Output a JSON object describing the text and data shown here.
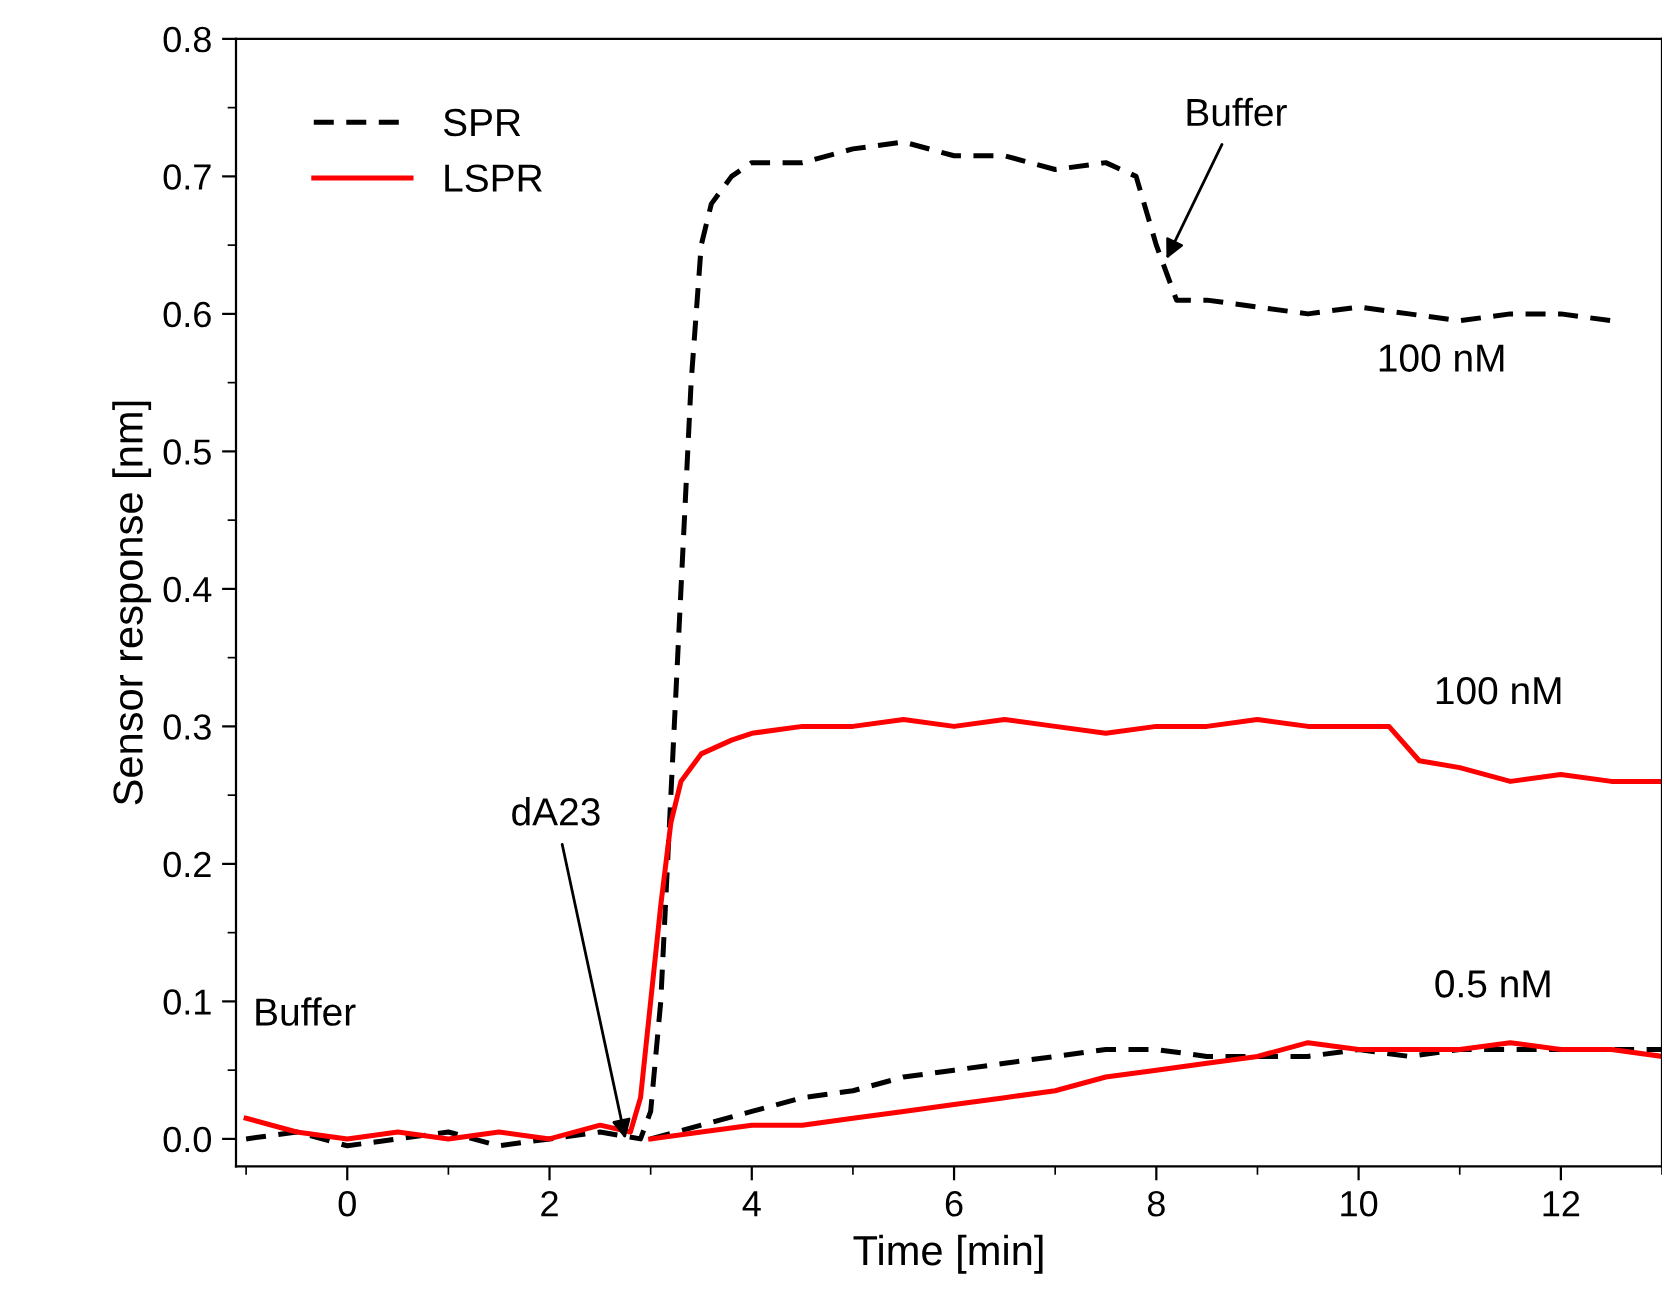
{
  "chart_data": {
    "type": "line",
    "xlabel": "Time [min]",
    "ylabel": "Sensor response [nm]",
    "xlim": [
      -1.1,
      13
    ],
    "xticks": [
      0,
      2,
      4,
      6,
      8,
      10,
      12
    ],
    "ylim": [
      -0.02,
      0.8
    ],
    "yticks": [
      {
        "value": 0,
        "label": "0.0"
      },
      0.1,
      0.2,
      0.3,
      0.4,
      0.5,
      0.6,
      0.7,
      0.8
    ],
    "grid": false,
    "legend": "top left",
    "series": [
      {
        "name": "SPR",
        "color": "#000000",
        "line_style": "dashed",
        "x": [
          -1,
          -0.5,
          0,
          0.5,
          1,
          1.5,
          2,
          2.5,
          2.9,
          3.0,
          3.1,
          3.2,
          3.3,
          3.4,
          3.5,
          3.6,
          3.8,
          4.0,
          4.5,
          5.0,
          5.5,
          6.0,
          6.5,
          7.0,
          7.5,
          7.8,
          8.0,
          8.2,
          8.5,
          9.0,
          9.5,
          10.0,
          10.5,
          11.0,
          11.5,
          12.0,
          12.5
        ],
        "values": [
          0.0,
          0.005,
          -0.005,
          0.0,
          0.005,
          -0.005,
          0.0,
          0.005,
          0.0,
          0.02,
          0.1,
          0.25,
          0.4,
          0.55,
          0.65,
          0.68,
          0.7,
          0.71,
          0.71,
          0.72,
          0.725,
          0.715,
          0.715,
          0.705,
          0.71,
          0.7,
          0.65,
          0.61,
          0.61,
          0.605,
          0.6,
          0.605,
          0.6,
          0.595,
          0.6,
          0.6,
          0.595
        ]
      },
      {
        "name": "LSPR",
        "color": "#ff0000",
        "line_style": "solid",
        "x": [
          -1,
          -0.5,
          0,
          0.5,
          1,
          1.5,
          2,
          2.5,
          2.8,
          2.9,
          3.0,
          3.1,
          3.2,
          3.3,
          3.5,
          3.8,
          4.0,
          4.5,
          5.0,
          5.5,
          6.0,
          6.5,
          7.0,
          7.5,
          8.0,
          8.5,
          9.0,
          9.5,
          10.0,
          10.3,
          10.6,
          11.0,
          11.5,
          12.0,
          12.5,
          13.0
        ],
        "values": [
          0.015,
          0.005,
          0.0,
          0.005,
          0.0,
          0.005,
          0.0,
          0.01,
          0.005,
          0.03,
          0.1,
          0.17,
          0.23,
          0.26,
          0.28,
          0.29,
          0.295,
          0.3,
          0.3,
          0.305,
          0.3,
          0.305,
          0.3,
          0.295,
          0.3,
          0.3,
          0.305,
          0.3,
          0.3,
          0.3,
          0.275,
          0.27,
          0.26,
          0.265,
          0.26,
          0.26
        ]
      },
      {
        "color": "#000000",
        "line_style": "dashed",
        "x": [
          3.0,
          3.5,
          4.0,
          4.5,
          5.0,
          5.5,
          6.0,
          6.5,
          7.0,
          7.5,
          8.0,
          8.5,
          9.0,
          9.5,
          10.0,
          10.5,
          11.0,
          11.5,
          12.0,
          12.5,
          13.0
        ],
        "values": [
          0.0,
          0.01,
          0.02,
          0.03,
          0.035,
          0.045,
          0.05,
          0.055,
          0.06,
          0.065,
          0.065,
          0.06,
          0.06,
          0.06,
          0.065,
          0.06,
          0.065,
          0.065,
          0.065,
          0.065,
          0.065
        ]
      },
      {
        "color": "#ff0000",
        "line_style": "solid",
        "x": [
          3.0,
          3.5,
          4.0,
          4.5,
          5.0,
          5.5,
          6.0,
          6.5,
          7.0,
          7.5,
          8.0,
          8.5,
          9.0,
          9.5,
          10.0,
          10.5,
          11.0,
          11.5,
          12.0,
          12.5,
          13.0
        ],
        "values": [
          0.0,
          0.005,
          0.01,
          0.01,
          0.015,
          0.02,
          0.025,
          0.03,
          0.035,
          0.045,
          0.05,
          0.055,
          0.06,
          0.07,
          0.065,
          0.065,
          0.065,
          0.07,
          0.065,
          0.065,
          0.06
        ]
      }
    ],
    "annotations": [
      {
        "text": "Buffer",
        "x": 8.1,
        "y": 0.64
      },
      {
        "text": "dA23",
        "x": 2.75,
        "y": 0.0
      },
      "Buffer",
      "100 nM",
      "100 nM",
      "0.5 nM"
    ]
  }
}
